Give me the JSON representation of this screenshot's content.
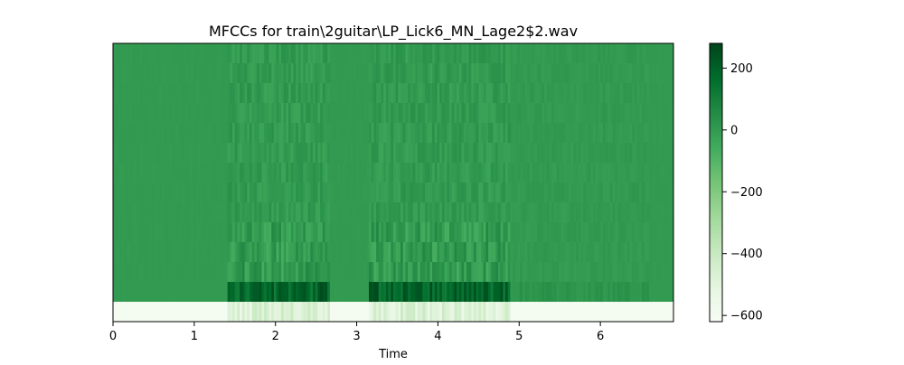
{
  "chart_data": {
    "type": "heatmap",
    "title": "MFCCs for train\\2guitar\\LP_Lick6_MN_Lage2$2.wav",
    "xlabel": "Time",
    "ylabel": "",
    "xlim": [
      0,
      6.9
    ],
    "xticks": [
      0,
      1,
      2,
      3,
      4,
      5,
      6
    ],
    "xtick_labels": [
      "0",
      "1",
      "2",
      "3",
      "4",
      "5",
      "6"
    ],
    "n_coefficients": 14,
    "y_axis_ticks_shown": false,
    "colormap": "Greens",
    "colorbar": {
      "range": [
        -620,
        280
      ],
      "ticks": [
        200,
        0,
        -200,
        -400,
        -600
      ],
      "tick_labels": [
        "200",
        "0",
        "−200",
        "−400",
        "−600"
      ]
    },
    "silence_value": 0,
    "first_coef_silence": -600,
    "active_segments": [
      {
        "start": 1.42,
        "end": 2.68
      },
      {
        "start": 3.15,
        "end": 4.88
      }
    ],
    "colors": {
      "low": "#f7fcf5",
      "mid": "#2e9a50",
      "high": "#00441b"
    }
  }
}
